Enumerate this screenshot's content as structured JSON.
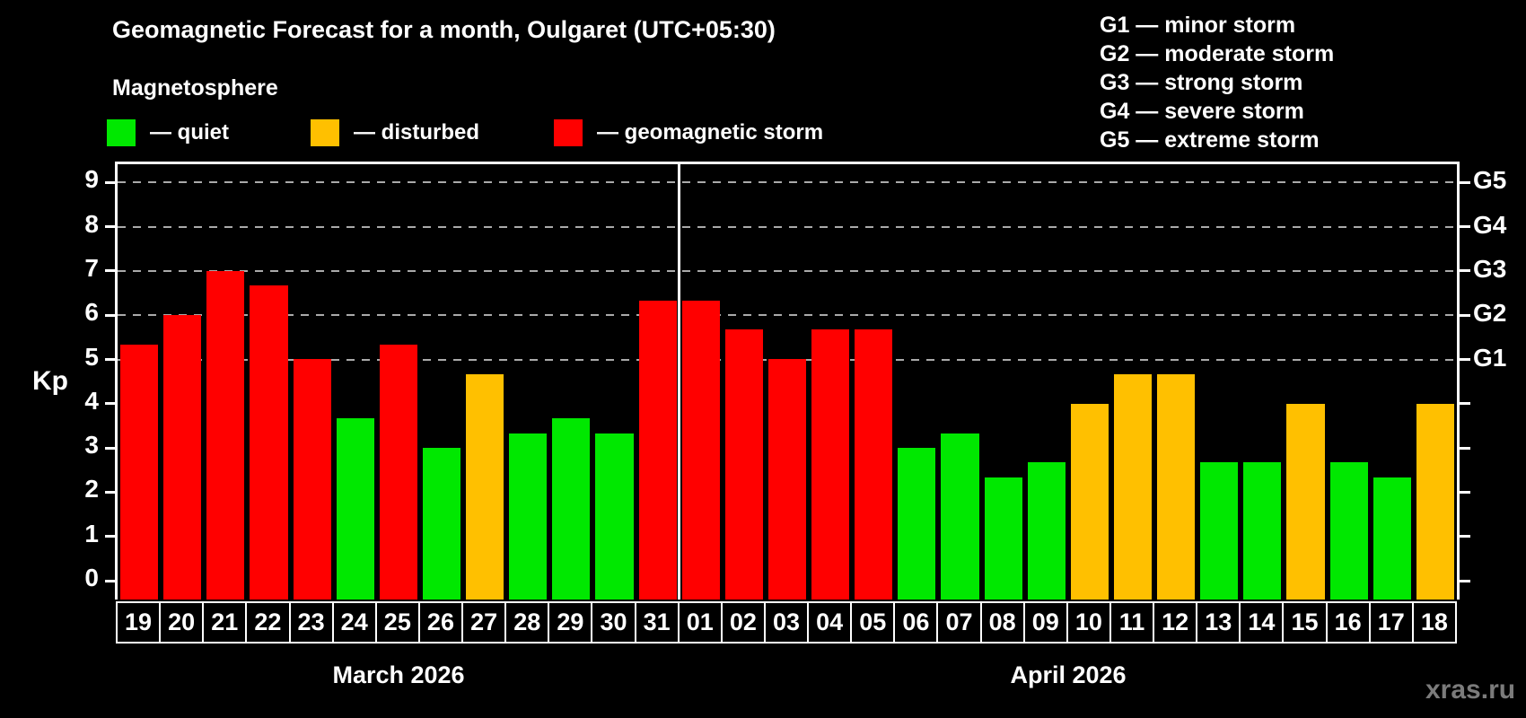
{
  "header": {
    "title": "Geomagnetic Forecast for a month, Oulgaret (UTC+05:30)",
    "subtitle": "Magnetosphere"
  },
  "legend": {
    "items": [
      {
        "key": "quiet",
        "label": "— quiet"
      },
      {
        "key": "disturbed",
        "label": "— disturbed"
      },
      {
        "key": "storm",
        "label": "— geomagnetic storm"
      }
    ]
  },
  "g_legend": {
    "items": [
      "G1 — minor storm",
      "G2 — moderate storm",
      "G3 — strong storm",
      "G4 — severe storm",
      "G5 — extreme storm"
    ]
  },
  "watermark": "xras.ru",
  "chart_data": {
    "type": "bar",
    "title": "Geomagnetic Forecast for a month, Oulgaret (UTC+05:30)",
    "ylabel": "Kp",
    "ylim": [
      0,
      9
    ],
    "y_ticks": [
      0,
      1,
      2,
      3,
      4,
      5,
      6,
      7,
      8,
      9
    ],
    "right_axis_labels": [
      "G1",
      "G2",
      "G3",
      "G4",
      "G5"
    ],
    "g_levels": [
      5,
      6,
      7,
      8,
      9
    ],
    "grid": "dashed horizontal lines at G levels only",
    "legend_position": "top-left",
    "months": [
      {
        "label": "March 2026",
        "days": 13
      },
      {
        "label": "April 2026",
        "days": 18
      }
    ],
    "colors": {
      "quiet": "#00e800",
      "disturbed": "#ffc000",
      "storm": "#ff0000"
    },
    "bars": [
      {
        "day": "19",
        "value": 5.33,
        "status": "storm"
      },
      {
        "day": "20",
        "value": 6.0,
        "status": "storm"
      },
      {
        "day": "21",
        "value": 7.0,
        "status": "storm"
      },
      {
        "day": "22",
        "value": 6.67,
        "status": "storm"
      },
      {
        "day": "23",
        "value": 5.0,
        "status": "storm"
      },
      {
        "day": "24",
        "value": 3.67,
        "status": "quiet"
      },
      {
        "day": "25",
        "value": 5.33,
        "status": "storm"
      },
      {
        "day": "26",
        "value": 3.0,
        "status": "quiet"
      },
      {
        "day": "27",
        "value": 4.67,
        "status": "disturbed"
      },
      {
        "day": "28",
        "value": 3.33,
        "status": "quiet"
      },
      {
        "day": "29",
        "value": 3.67,
        "status": "quiet"
      },
      {
        "day": "30",
        "value": 3.33,
        "status": "quiet"
      },
      {
        "day": "31",
        "value": 6.33,
        "status": "storm"
      },
      {
        "day": "01",
        "value": 6.33,
        "status": "storm"
      },
      {
        "day": "02",
        "value": 5.67,
        "status": "storm"
      },
      {
        "day": "03",
        "value": 5.0,
        "status": "storm"
      },
      {
        "day": "04",
        "value": 5.67,
        "status": "storm"
      },
      {
        "day": "05",
        "value": 5.67,
        "status": "storm"
      },
      {
        "day": "06",
        "value": 3.0,
        "status": "quiet"
      },
      {
        "day": "07",
        "value": 3.33,
        "status": "quiet"
      },
      {
        "day": "08",
        "value": 2.33,
        "status": "quiet"
      },
      {
        "day": "09",
        "value": 2.67,
        "status": "quiet"
      },
      {
        "day": "10",
        "value": 4.0,
        "status": "disturbed"
      },
      {
        "day": "11",
        "value": 4.67,
        "status": "disturbed"
      },
      {
        "day": "12",
        "value": 4.67,
        "status": "disturbed"
      },
      {
        "day": "13",
        "value": 2.67,
        "status": "quiet"
      },
      {
        "day": "14",
        "value": 2.67,
        "status": "quiet"
      },
      {
        "day": "15",
        "value": 4.0,
        "status": "disturbed"
      },
      {
        "day": "16",
        "value": 2.67,
        "status": "quiet"
      },
      {
        "day": "17",
        "value": 2.33,
        "status": "quiet"
      },
      {
        "day": "18",
        "value": 4.0,
        "status": "disturbed"
      }
    ]
  }
}
